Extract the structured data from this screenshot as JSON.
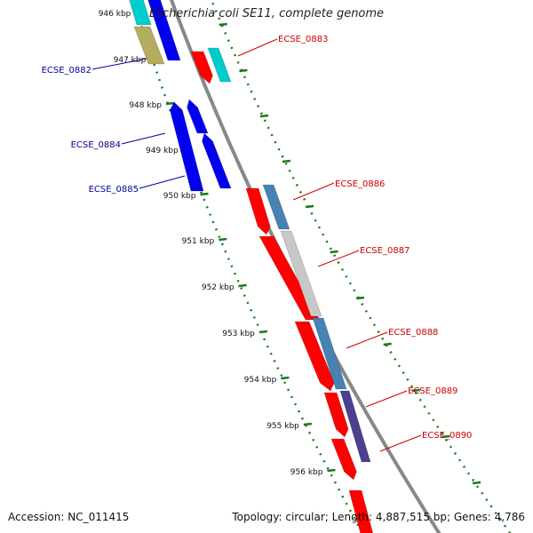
{
  "title": "Escherichia coli SE11, complete genome",
  "footer": {
    "accession": "Accession: NC_011415",
    "summary": "Topology: circular; Length: 4,887,515 bp; Genes: 4,786"
  },
  "colors": {
    "forward_label": "#cc0000",
    "reverse_label": "#000099",
    "ruler_label": "#111111",
    "ruler_dots": "#1a7a1a",
    "backbone": "#888888",
    "cds_forward": "#ff0000",
    "cds_reverse": "#0000ee",
    "cds_cyan": "#00cccc",
    "cds_khaki": "#b5ad5e",
    "cds_steelblue": "#4682b4",
    "cds_grey": "#c8c8c8",
    "cds_purple": "#4b3f8f"
  },
  "ruler_ticks": [
    "946 kbp",
    "947 kbp",
    "948 kbp",
    "949 kbp",
    "950 kbp",
    "951 kbp",
    "952 kbp",
    "953 kbp",
    "954 kbp",
    "955 kbp",
    "956 kbp"
  ],
  "gene_labels": [
    {
      "text": "ECSE_0883",
      "strand": "forward"
    },
    {
      "text": "ECSE_0882",
      "strand": "reverse"
    },
    {
      "text": "ECSE_0884",
      "strand": "reverse"
    },
    {
      "text": "ECSE_0885",
      "strand": "reverse"
    },
    {
      "text": "ECSE_0886",
      "strand": "forward"
    },
    {
      "text": "ECSE_0887",
      "strand": "forward"
    },
    {
      "text": "ECSE_0888",
      "strand": "forward"
    },
    {
      "text": "ECSE_0889",
      "strand": "forward"
    },
    {
      "text": "ECSE_0890",
      "strand": "forward"
    }
  ]
}
